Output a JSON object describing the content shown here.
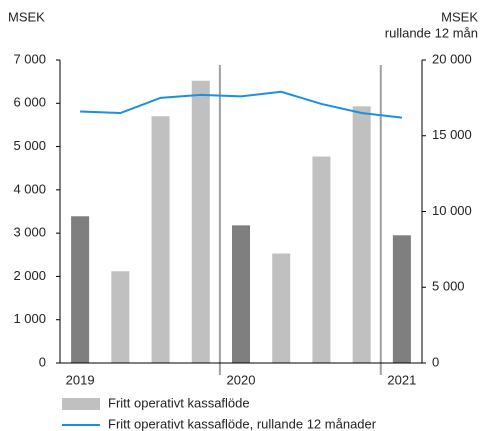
{
  "chart_data": {
    "type": "bar",
    "y_label": "MSEK",
    "y2_label": [
      "MSEK",
      "rullande 12 mån"
    ],
    "categories": [
      "2019",
      null,
      null,
      null,
      "2020",
      null,
      null,
      null,
      "2021"
    ],
    "series": [
      {
        "name": "Fritt operativt kassaflöde",
        "type": "bar",
        "color": "#c0c0c0",
        "colors": [
          "#7f7f7f",
          "#c0c0c0",
          "#c0c0c0",
          "#c0c0c0",
          "#7f7f7f",
          "#c0c0c0",
          "#c0c0c0",
          "#c0c0c0",
          "#7f7f7f"
        ],
        "values": [
          3390,
          2120,
          5700,
          6520,
          3180,
          2530,
          4770,
          5930,
          2950
        ]
      },
      {
        "name": "Fritt operativt kassaflöde, rullande 12 månader",
        "type": "line",
        "axis": "y2",
        "color": "#1a8fe3",
        "values": [
          16600,
          16500,
          17500,
          17700,
          17600,
          17900,
          17100,
          16500,
          16200
        ]
      }
    ],
    "ylim": [
      0,
      7000
    ],
    "yticks": [
      0,
      {
        "value": 1000,
        "label": "1 000"
      },
      {
        "value": 2000,
        "label": "2 000"
      },
      {
        "value": 3000,
        "label": "3 000"
      },
      {
        "value": 4000,
        "label": "4 000"
      },
      {
        "value": 5000,
        "label": "5 000"
      },
      {
        "value": 6000,
        "label": "6 000"
      },
      {
        "value": 7000,
        "label": "7 000"
      }
    ],
    "y2lim": [
      0,
      20000
    ],
    "y2ticks": [
      0,
      {
        "value": 5000,
        "label": "5 000"
      },
      {
        "value": 10000,
        "label": "10 000"
      },
      {
        "value": 15000,
        "label": "15 000"
      },
      {
        "value": 20000,
        "label": "20 000"
      }
    ],
    "grid": false
  }
}
